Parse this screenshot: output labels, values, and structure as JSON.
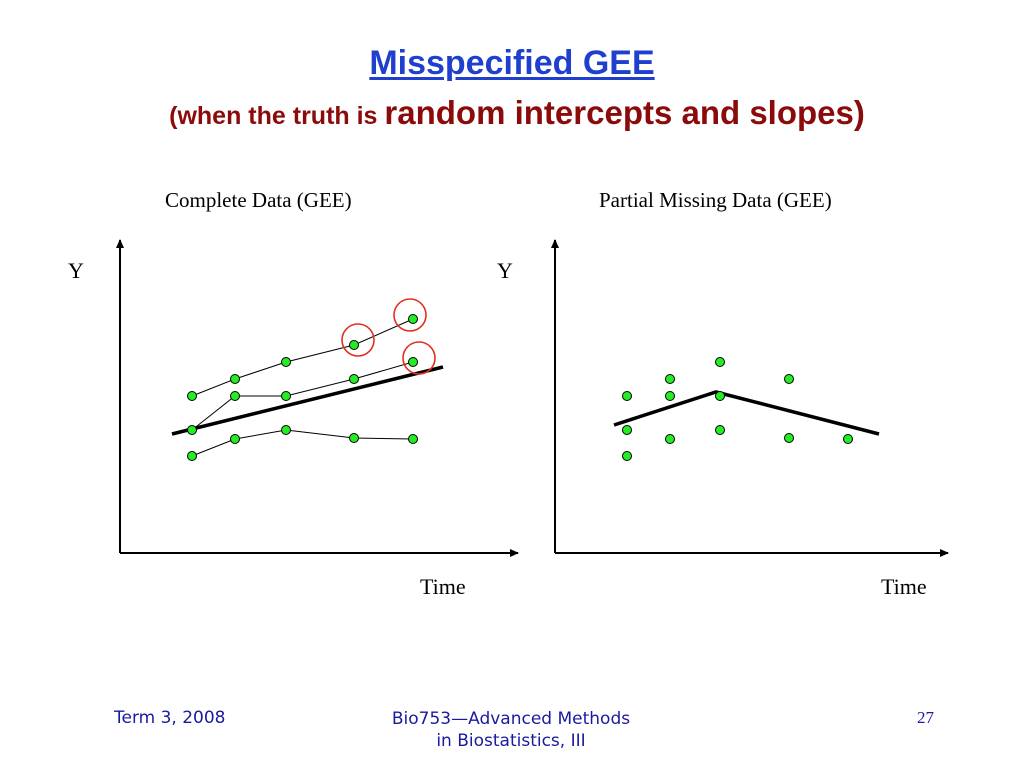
{
  "slide": {
    "title": "Misspecified GEE",
    "subtitle_small": "(when the truth is ",
    "subtitle_big": "random intercepts and slopes)"
  },
  "left_panel": {
    "title": "Complete Data (GEE)",
    "y_label": "Y",
    "x_label": "Time"
  },
  "right_panel": {
    "title": "Partial Missing Data (GEE)",
    "y_label": "Y",
    "x_label": "Time"
  },
  "footer": {
    "left": "Term 3, 2008",
    "center_line1": "Bio753—Advanced Methods",
    "center_line2": "in Biostatistics, III",
    "page": "27"
  },
  "colors": {
    "title": "#1f3fcf",
    "subtitle": "#8b0a0a",
    "point_fill": "#22ee22",
    "highlight_circle": "#e0301e",
    "footer": "#1a1aa0"
  }
}
